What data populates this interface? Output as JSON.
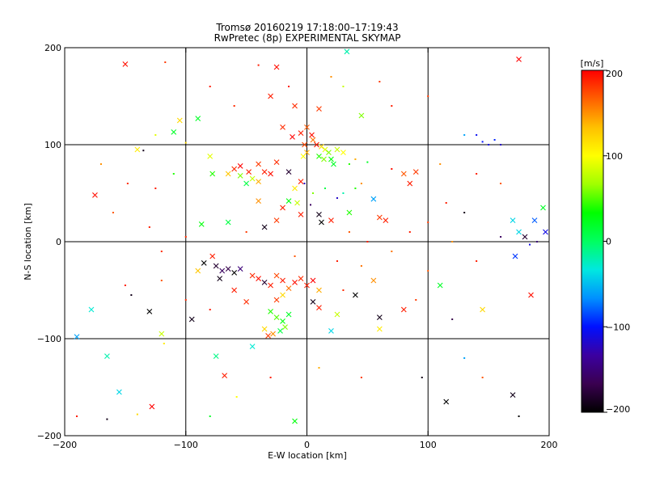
{
  "chart_data": {
    "type": "scatter",
    "title": "Tromsø 20160219 17:18:00–17:19:43",
    "subtitle": "RwPretec (8p) EXPERIMENTAL SKYMAP",
    "xlabel": "E-W location [km]",
    "ylabel": "N-S location [km]",
    "xlim": [
      -200,
      200
    ],
    "ylim": [
      -200,
      200
    ],
    "xticks": [
      -200,
      -100,
      0,
      100,
      200
    ],
    "yticks": [
      -200,
      -100,
      0,
      100,
      200
    ],
    "grid": true,
    "colorbar": {
      "label": "[m/s]",
      "min": -200,
      "max": 200,
      "ticks": [
        200,
        100,
        0,
        -100,
        -200
      ],
      "colors": [
        "#000000",
        "#3a0050",
        "#3b00a0",
        "#0010ff",
        "#0090ff",
        "#00e8e0",
        "#00ff60",
        "#00ff00",
        "#a0ff00",
        "#ffff00",
        "#ffc000",
        "#ff6000",
        "#ff0000"
      ]
    },
    "points": [
      {
        "x": -150,
        "y": 183,
        "v": 195,
        "m": "x"
      },
      {
        "x": 175,
        "y": 188,
        "v": 200,
        "m": "x"
      },
      {
        "x": 33,
        "y": 196,
        "v": -20,
        "m": "x"
      },
      {
        "x": -117,
        "y": 185,
        "v": 180,
        "m": "d"
      },
      {
        "x": -40,
        "y": 182,
        "v": 190,
        "m": "d"
      },
      {
        "x": -25,
        "y": 180,
        "v": 195,
        "m": "x"
      },
      {
        "x": 20,
        "y": 170,
        "v": 150,
        "m": "d"
      },
      {
        "x": 60,
        "y": 165,
        "v": 180,
        "m": "d"
      },
      {
        "x": -30,
        "y": 150,
        "v": 190,
        "m": "x"
      },
      {
        "x": -10,
        "y": 140,
        "v": 185,
        "m": "x"
      },
      {
        "x": 10,
        "y": 137,
        "v": 180,
        "m": "x"
      },
      {
        "x": -105,
        "y": 125,
        "v": 120,
        "m": "x"
      },
      {
        "x": -90,
        "y": 127,
        "v": 20,
        "m": "x"
      },
      {
        "x": 45,
        "y": 130,
        "v": 60,
        "m": "x"
      },
      {
        "x": -110,
        "y": 113,
        "v": 20,
        "m": "x"
      },
      {
        "x": -125,
        "y": 110,
        "v": 90,
        "m": "d"
      },
      {
        "x": -140,
        "y": 95,
        "v": 110,
        "m": "x"
      },
      {
        "x": -135,
        "y": 94,
        "v": -190,
        "m": "d"
      },
      {
        "x": -100,
        "y": 102,
        "v": 120,
        "m": "d"
      },
      {
        "x": -175,
        "y": 48,
        "v": 195,
        "m": "x"
      },
      {
        "x": -20,
        "y": 118,
        "v": 185,
        "m": "x"
      },
      {
        "x": -12,
        "y": 108,
        "v": 200,
        "m": "x"
      },
      {
        "x": -5,
        "y": 112,
        "v": 190,
        "m": "x"
      },
      {
        "x": 0,
        "y": 118,
        "v": 170,
        "m": "x"
      },
      {
        "x": 5,
        "y": 105,
        "v": 160,
        "m": "x"
      },
      {
        "x": 8,
        "y": 100,
        "v": 190,
        "m": "x"
      },
      {
        "x": 12,
        "y": 98,
        "v": 120,
        "m": "x"
      },
      {
        "x": 15,
        "y": 95,
        "v": 90,
        "m": "x"
      },
      {
        "x": 18,
        "y": 92,
        "v": 60,
        "m": "x"
      },
      {
        "x": 0,
        "y": 92,
        "v": 140,
        "m": "x"
      },
      {
        "x": -3,
        "y": 88,
        "v": 100,
        "m": "x"
      },
      {
        "x": 10,
        "y": 88,
        "v": 40,
        "m": "x"
      },
      {
        "x": 20,
        "y": 85,
        "v": 30,
        "m": "x"
      },
      {
        "x": 25,
        "y": 95,
        "v": 80,
        "m": "x"
      },
      {
        "x": 30,
        "y": 92,
        "v": 100,
        "m": "x"
      },
      {
        "x": -2,
        "y": 100,
        "v": 175,
        "m": "x"
      },
      {
        "x": 4,
        "y": 110,
        "v": 195,
        "m": "x"
      },
      {
        "x": 14,
        "y": 85,
        "v": 60,
        "m": "x"
      },
      {
        "x": 22,
        "y": 80,
        "v": 20,
        "m": "x"
      },
      {
        "x": 35,
        "y": 80,
        "v": 40,
        "m": "d"
      },
      {
        "x": 40,
        "y": 85,
        "v": 140,
        "m": "d"
      },
      {
        "x": 50,
        "y": 82,
        "v": 20,
        "m": "d"
      },
      {
        "x": -60,
        "y": 75,
        "v": 185,
        "m": "x"
      },
      {
        "x": -55,
        "y": 78,
        "v": 200,
        "m": "x"
      },
      {
        "x": -48,
        "y": 72,
        "v": 190,
        "m": "x"
      },
      {
        "x": -40,
        "y": 80,
        "v": 180,
        "m": "x"
      },
      {
        "x": -35,
        "y": 72,
        "v": 190,
        "m": "x"
      },
      {
        "x": -45,
        "y": 65,
        "v": 80,
        "m": "x"
      },
      {
        "x": -50,
        "y": 60,
        "v": 10,
        "m": "x"
      },
      {
        "x": -40,
        "y": 62,
        "v": 140,
        "m": "x"
      },
      {
        "x": -55,
        "y": 68,
        "v": 60,
        "m": "x"
      },
      {
        "x": -30,
        "y": 70,
        "v": 195,
        "m": "x"
      },
      {
        "x": -25,
        "y": 82,
        "v": 185,
        "m": "x"
      },
      {
        "x": -65,
        "y": 70,
        "v": 130,
        "m": "x"
      },
      {
        "x": -80,
        "y": 88,
        "v": 90,
        "m": "x"
      },
      {
        "x": -78,
        "y": 70,
        "v": 40,
        "m": "x"
      },
      {
        "x": -15,
        "y": 72,
        "v": -180,
        "m": "x"
      },
      {
        "x": -5,
        "y": 62,
        "v": 190,
        "m": "x"
      },
      {
        "x": -10,
        "y": 55,
        "v": 110,
        "m": "x"
      },
      {
        "x": -15,
        "y": 42,
        "v": 30,
        "m": "x"
      },
      {
        "x": -8,
        "y": 40,
        "v": 80,
        "m": "x"
      },
      {
        "x": -40,
        "y": 42,
        "v": 150,
        "m": "x"
      },
      {
        "x": -20,
        "y": 35,
        "v": 190,
        "m": "x"
      },
      {
        "x": -25,
        "y": 22,
        "v": 180,
        "m": "x"
      },
      {
        "x": -5,
        "y": 28,
        "v": 190,
        "m": "x"
      },
      {
        "x": 10,
        "y": 28,
        "v": -190,
        "m": "x"
      },
      {
        "x": 12,
        "y": 20,
        "v": -200,
        "m": "x"
      },
      {
        "x": 20,
        "y": 22,
        "v": 190,
        "m": "x"
      },
      {
        "x": 35,
        "y": 30,
        "v": 40,
        "m": "x"
      },
      {
        "x": 55,
        "y": 44,
        "v": -60,
        "m": "x"
      },
      {
        "x": 60,
        "y": 25,
        "v": 180,
        "m": "x"
      },
      {
        "x": 65,
        "y": 22,
        "v": 190,
        "m": "x"
      },
      {
        "x": 85,
        "y": 60,
        "v": 190,
        "m": "x"
      },
      {
        "x": 80,
        "y": 70,
        "v": 170,
        "m": "x"
      },
      {
        "x": 90,
        "y": 72,
        "v": 180,
        "m": "x"
      },
      {
        "x": 70,
        "y": 75,
        "v": 195,
        "m": "d"
      },
      {
        "x": 45,
        "y": 60,
        "v": 150,
        "m": "d"
      },
      {
        "x": 40,
        "y": 55,
        "v": 40,
        "m": "d"
      },
      {
        "x": 30,
        "y": 50,
        "v": -20,
        "m": "d"
      },
      {
        "x": 25,
        "y": 45,
        "v": -120,
        "m": "d"
      },
      {
        "x": 15,
        "y": 55,
        "v": 10,
        "m": "d"
      },
      {
        "x": 5,
        "y": 50,
        "v": 60,
        "m": "d"
      },
      {
        "x": -65,
        "y": 20,
        "v": 10,
        "m": "x"
      },
      {
        "x": -87,
        "y": 18,
        "v": 30,
        "m": "x"
      },
      {
        "x": -35,
        "y": 15,
        "v": -190,
        "m": "x"
      },
      {
        "x": 145,
        "y": 103,
        "v": -100,
        "m": "d"
      },
      {
        "x": 150,
        "y": 100,
        "v": -110,
        "m": "d"
      },
      {
        "x": 155,
        "y": 105,
        "v": -95,
        "m": "d"
      },
      {
        "x": 140,
        "y": 110,
        "v": -105,
        "m": "d"
      },
      {
        "x": 160,
        "y": 100,
        "v": -120,
        "m": "d"
      },
      {
        "x": 130,
        "y": 110,
        "v": -60,
        "m": "d"
      },
      {
        "x": 195,
        "y": 35,
        "v": 20,
        "m": "x"
      },
      {
        "x": 170,
        "y": 22,
        "v": -40,
        "m": "x"
      },
      {
        "x": 188,
        "y": 22,
        "v": -80,
        "m": "x"
      },
      {
        "x": 175,
        "y": 10,
        "v": -40,
        "m": "x"
      },
      {
        "x": 180,
        "y": 5,
        "v": -180,
        "m": "x"
      },
      {
        "x": 197,
        "y": 10,
        "v": -110,
        "m": "x"
      },
      {
        "x": 172,
        "y": -15,
        "v": -90,
        "m": "x"
      },
      {
        "x": 184,
        "y": -3,
        "v": -110,
        "m": "d"
      },
      {
        "x": 190,
        "y": 0,
        "v": -150,
        "m": "d"
      },
      {
        "x": 160,
        "y": 5,
        "v": -160,
        "m": "d"
      },
      {
        "x": 185,
        "y": -55,
        "v": 195,
        "m": "x"
      },
      {
        "x": 145,
        "y": -70,
        "v": 120,
        "m": "x"
      },
      {
        "x": -90,
        "y": -30,
        "v": 130,
        "m": "x"
      },
      {
        "x": -75,
        "y": -25,
        "v": -180,
        "m": "x"
      },
      {
        "x": -70,
        "y": -30,
        "v": -160,
        "m": "x"
      },
      {
        "x": -65,
        "y": -28,
        "v": -170,
        "m": "x"
      },
      {
        "x": -60,
        "y": -32,
        "v": -200,
        "m": "x"
      },
      {
        "x": -55,
        "y": -28,
        "v": -150,
        "m": "x"
      },
      {
        "x": -72,
        "y": -38,
        "v": -190,
        "m": "x"
      },
      {
        "x": -78,
        "y": -15,
        "v": 190,
        "m": "x"
      },
      {
        "x": -85,
        "y": -22,
        "v": -200,
        "m": "x"
      },
      {
        "x": -45,
        "y": -35,
        "v": 185,
        "m": "x"
      },
      {
        "x": -40,
        "y": -38,
        "v": 195,
        "m": "x"
      },
      {
        "x": -35,
        "y": -42,
        "v": -180,
        "m": "x"
      },
      {
        "x": -30,
        "y": -45,
        "v": 190,
        "m": "x"
      },
      {
        "x": -25,
        "y": -35,
        "v": 175,
        "m": "x"
      },
      {
        "x": -20,
        "y": -40,
        "v": 190,
        "m": "x"
      },
      {
        "x": -15,
        "y": -48,
        "v": 160,
        "m": "x"
      },
      {
        "x": -10,
        "y": -42,
        "v": 195,
        "m": "x"
      },
      {
        "x": -5,
        "y": -38,
        "v": 185,
        "m": "x"
      },
      {
        "x": 0,
        "y": -45,
        "v": 190,
        "m": "x"
      },
      {
        "x": 5,
        "y": -40,
        "v": 200,
        "m": "x"
      },
      {
        "x": 10,
        "y": -50,
        "v": 140,
        "m": "x"
      },
      {
        "x": -20,
        "y": -55,
        "v": 120,
        "m": "x"
      },
      {
        "x": -25,
        "y": -60,
        "v": 180,
        "m": "x"
      },
      {
        "x": -50,
        "y": -62,
        "v": 185,
        "m": "x"
      },
      {
        "x": -60,
        "y": -50,
        "v": 190,
        "m": "x"
      },
      {
        "x": -30,
        "y": -72,
        "v": 40,
        "m": "x"
      },
      {
        "x": -25,
        "y": -78,
        "v": 50,
        "m": "x"
      },
      {
        "x": -20,
        "y": -82,
        "v": 30,
        "m": "x"
      },
      {
        "x": -18,
        "y": -88,
        "v": 60,
        "m": "x"
      },
      {
        "x": -22,
        "y": -92,
        "v": 10,
        "m": "x"
      },
      {
        "x": -28,
        "y": -95,
        "v": 150,
        "m": "x"
      },
      {
        "x": -32,
        "y": -97,
        "v": 180,
        "m": "x"
      },
      {
        "x": -35,
        "y": -90,
        "v": 120,
        "m": "x"
      },
      {
        "x": -15,
        "y": -75,
        "v": 20,
        "m": "x"
      },
      {
        "x": 5,
        "y": -62,
        "v": -190,
        "m": "x"
      },
      {
        "x": 10,
        "y": -68,
        "v": 190,
        "m": "x"
      },
      {
        "x": 25,
        "y": -75,
        "v": 80,
        "m": "x"
      },
      {
        "x": 40,
        "y": -55,
        "v": -200,
        "m": "x"
      },
      {
        "x": 55,
        "y": -40,
        "v": 150,
        "m": "x"
      },
      {
        "x": 60,
        "y": -78,
        "v": -190,
        "m": "x"
      },
      {
        "x": 80,
        "y": -70,
        "v": 190,
        "m": "x"
      },
      {
        "x": 110,
        "y": -45,
        "v": 20,
        "m": "x"
      },
      {
        "x": 60,
        "y": -90,
        "v": 110,
        "m": "x"
      },
      {
        "x": 20,
        "y": -92,
        "v": -40,
        "m": "x"
      },
      {
        "x": -45,
        "y": -108,
        "v": -30,
        "m": "x"
      },
      {
        "x": -95,
        "y": -80,
        "v": -190,
        "m": "x"
      },
      {
        "x": -120,
        "y": -95,
        "v": 80,
        "m": "x"
      },
      {
        "x": -130,
        "y": -72,
        "v": -200,
        "m": "x"
      },
      {
        "x": -178,
        "y": -70,
        "v": -30,
        "m": "x"
      },
      {
        "x": -190,
        "y": -98,
        "v": -60,
        "m": "x"
      },
      {
        "x": -165,
        "y": -118,
        "v": -20,
        "m": "x"
      },
      {
        "x": -155,
        "y": -155,
        "v": -40,
        "m": "x"
      },
      {
        "x": -128,
        "y": -170,
        "v": 200,
        "m": "x"
      },
      {
        "x": -75,
        "y": -118,
        "v": -10,
        "m": "x"
      },
      {
        "x": -68,
        "y": -138,
        "v": 190,
        "m": "x"
      },
      {
        "x": -10,
        "y": -185,
        "v": 30,
        "m": "x"
      },
      {
        "x": 115,
        "y": -165,
        "v": -200,
        "m": "x"
      },
      {
        "x": 170,
        "y": -158,
        "v": -190,
        "m": "x"
      },
      {
        "x": -118,
        "y": -105,
        "v": 110,
        "m": "d"
      },
      {
        "x": -80,
        "y": -180,
        "v": 20,
        "m": "d"
      },
      {
        "x": -58,
        "y": -160,
        "v": 100,
        "m": "d"
      },
      {
        "x": -30,
        "y": -140,
        "v": 190,
        "m": "d"
      },
      {
        "x": 10,
        "y": -130,
        "v": 140,
        "m": "d"
      },
      {
        "x": 45,
        "y": -140,
        "v": 180,
        "m": "d"
      },
      {
        "x": 95,
        "y": -140,
        "v": -190,
        "m": "d"
      },
      {
        "x": 130,
        "y": -120,
        "v": -60,
        "m": "d"
      },
      {
        "x": 145,
        "y": -140,
        "v": 170,
        "m": "d"
      },
      {
        "x": 175,
        "y": -180,
        "v": -200,
        "m": "d"
      },
      {
        "x": -165,
        "y": -183,
        "v": -190,
        "m": "d"
      },
      {
        "x": -140,
        "y": -178,
        "v": 120,
        "m": "d"
      },
      {
        "x": -190,
        "y": -180,
        "v": 190,
        "m": "d"
      },
      {
        "x": -145,
        "y": -55,
        "v": -190,
        "m": "d"
      },
      {
        "x": -150,
        "y": -45,
        "v": 190,
        "m": "d"
      },
      {
        "x": -120,
        "y": -40,
        "v": 170,
        "m": "d"
      },
      {
        "x": -100,
        "y": 5,
        "v": 185,
        "m": "d"
      },
      {
        "x": -130,
        "y": 15,
        "v": 190,
        "m": "d"
      },
      {
        "x": -160,
        "y": 30,
        "v": 170,
        "m": "d"
      },
      {
        "x": -148,
        "y": 60,
        "v": 185,
        "m": "d"
      },
      {
        "x": -170,
        "y": 80,
        "v": 150,
        "m": "d"
      },
      {
        "x": -125,
        "y": 55,
        "v": 190,
        "m": "d"
      },
      {
        "x": -110,
        "y": 70,
        "v": 40,
        "m": "d"
      },
      {
        "x": 100,
        "y": 20,
        "v": 180,
        "m": "d"
      },
      {
        "x": 115,
        "y": 40,
        "v": 190,
        "m": "d"
      },
      {
        "x": 130,
        "y": 30,
        "v": -190,
        "m": "d"
      },
      {
        "x": 120,
        "y": 0,
        "v": 150,
        "m": "d"
      },
      {
        "x": 140,
        "y": -20,
        "v": 190,
        "m": "d"
      },
      {
        "x": 100,
        "y": -30,
        "v": 170,
        "m": "d"
      },
      {
        "x": 110,
        "y": 80,
        "v": 150,
        "m": "d"
      },
      {
        "x": 140,
        "y": 70,
        "v": 190,
        "m": "d"
      },
      {
        "x": 160,
        "y": 60,
        "v": 170,
        "m": "d"
      },
      {
        "x": 70,
        "y": 140,
        "v": 190,
        "m": "d"
      },
      {
        "x": -60,
        "y": 140,
        "v": 185,
        "m": "d"
      },
      {
        "x": -80,
        "y": 160,
        "v": 190,
        "m": "d"
      },
      {
        "x": 100,
        "y": 150,
        "v": 180,
        "m": "d"
      },
      {
        "x": 30,
        "y": 160,
        "v": 80,
        "m": "d"
      },
      {
        "x": -15,
        "y": 160,
        "v": 190,
        "m": "d"
      },
      {
        "x": -2,
        "y": 60,
        "v": -120,
        "m": "d"
      },
      {
        "x": 3,
        "y": 38,
        "v": -160,
        "m": "d"
      },
      {
        "x": 35,
        "y": 10,
        "v": 170,
        "m": "d"
      },
      {
        "x": 50,
        "y": 0,
        "v": 190,
        "m": "d"
      },
      {
        "x": 70,
        "y": -10,
        "v": 160,
        "m": "d"
      },
      {
        "x": 85,
        "y": 10,
        "v": 190,
        "m": "d"
      },
      {
        "x": -50,
        "y": 10,
        "v": 180,
        "m": "d"
      },
      {
        "x": -120,
        "y": -10,
        "v": 185,
        "m": "d"
      },
      {
        "x": 25,
        "y": -20,
        "v": 190,
        "m": "d"
      },
      {
        "x": -10,
        "y": -15,
        "v": 170,
        "m": "d"
      },
      {
        "x": 45,
        "y": -25,
        "v": 160,
        "m": "d"
      },
      {
        "x": 30,
        "y": -50,
        "v": 185,
        "m": "d"
      },
      {
        "x": 90,
        "y": -60,
        "v": 180,
        "m": "d"
      },
      {
        "x": 120,
        "y": -80,
        "v": -170,
        "m": "d"
      },
      {
        "x": -80,
        "y": -70,
        "v": 190,
        "m": "d"
      },
      {
        "x": -100,
        "y": -60,
        "v": 185,
        "m": "d"
      }
    ]
  }
}
